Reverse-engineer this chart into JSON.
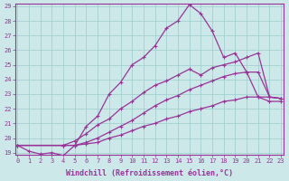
{
  "xlabel": "Windchill (Refroidissement éolien,°C)",
  "bg_color": "#cce8e8",
  "line_color": "#993399",
  "grid_color": "#99cccc",
  "xmin": 0,
  "xmax": 23,
  "ymin": 19,
  "ymax": 29,
  "line1_x": [
    0,
    1,
    2,
    3,
    4,
    5,
    6,
    7,
    8,
    9,
    10,
    11,
    12,
    13,
    14,
    15,
    16,
    17,
    18,
    19,
    20,
    21,
    22,
    23
  ],
  "line1_y": [
    19.5,
    19.1,
    18.9,
    19.0,
    18.8,
    19.5,
    20.8,
    21.5,
    23.0,
    23.8,
    25.0,
    25.5,
    26.3,
    27.5,
    28.0,
    29.1,
    28.5,
    27.3,
    25.5,
    25.8,
    24.5,
    22.8,
    22.5,
    22.5
  ],
  "line2_x": [
    0,
    4,
    5,
    6,
    7,
    8,
    9,
    10,
    11,
    12,
    13,
    14,
    15,
    16,
    17,
    18,
    19,
    20,
    21,
    22,
    23
  ],
  "line2_y": [
    19.5,
    19.5,
    19.8,
    20.3,
    20.9,
    21.3,
    22.0,
    22.5,
    23.1,
    23.6,
    23.9,
    24.3,
    24.7,
    24.3,
    24.8,
    25.0,
    25.2,
    25.5,
    25.8,
    22.8,
    22.7
  ],
  "line3_x": [
    0,
    4,
    5,
    6,
    7,
    8,
    9,
    10,
    11,
    12,
    13,
    14,
    15,
    16,
    17,
    18,
    19,
    20,
    21,
    22,
    23
  ],
  "line3_y": [
    19.5,
    19.5,
    19.5,
    19.7,
    20.0,
    20.4,
    20.8,
    21.2,
    21.7,
    22.2,
    22.6,
    22.9,
    23.3,
    23.6,
    23.9,
    24.2,
    24.4,
    24.5,
    24.5,
    22.8,
    22.7
  ],
  "line4_x": [
    0,
    4,
    5,
    6,
    7,
    8,
    9,
    10,
    11,
    12,
    13,
    14,
    15,
    16,
    17,
    18,
    19,
    20,
    21,
    22,
    23
  ],
  "line4_y": [
    19.5,
    19.5,
    19.5,
    19.6,
    19.7,
    20.0,
    20.2,
    20.5,
    20.8,
    21.0,
    21.3,
    21.5,
    21.8,
    22.0,
    22.2,
    22.5,
    22.6,
    22.8,
    22.8,
    22.8,
    22.7
  ],
  "yticks": [
    19,
    20,
    21,
    22,
    23,
    24,
    25,
    26,
    27,
    28,
    29
  ],
  "xticks": [
    0,
    1,
    2,
    3,
    4,
    5,
    6,
    7,
    8,
    9,
    10,
    11,
    12,
    13,
    14,
    15,
    16,
    17,
    18,
    19,
    20,
    21,
    22,
    23
  ],
  "tick_fontsize": 5.0,
  "xlabel_fontsize": 6.0
}
